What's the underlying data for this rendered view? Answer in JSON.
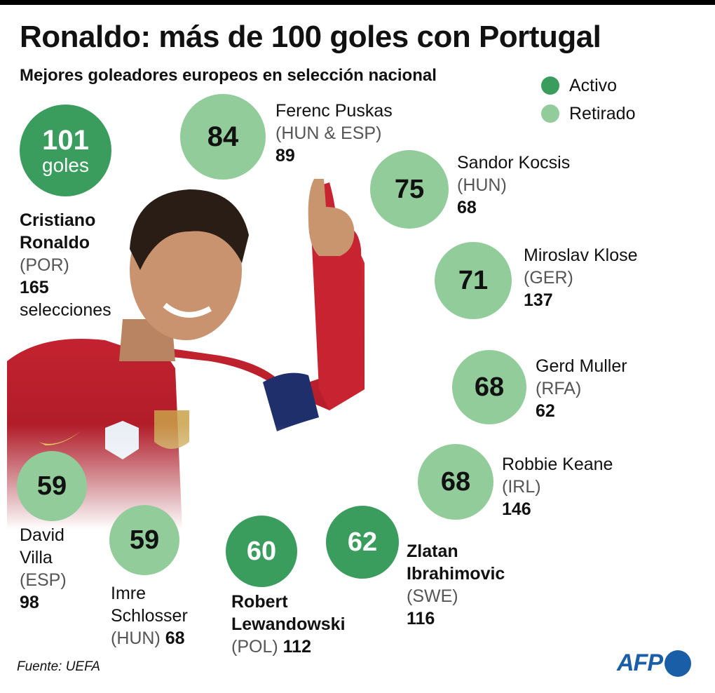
{
  "header": {
    "title": "Ronaldo: más de 100 goles con Portugal",
    "subtitle": "Mejores goleadores europeos en selección nacional"
  },
  "legend": {
    "active_label": "Activo",
    "retired_label": "Retirado"
  },
  "colors": {
    "active": "#3a9d5d",
    "retired": "#92cc9a"
  },
  "hero": {
    "goals": "101",
    "goals_unit": "goles",
    "name_line1": "Cristiano",
    "name_line2": "Ronaldo",
    "country": "(POR)",
    "caps": "165",
    "caps_label": "selecciones"
  },
  "chart_data": {
    "type": "bubble",
    "title": "Ronaldo: más de 100 goles con Portugal",
    "subtitle": "Mejores goleadores europeos en selección nacional",
    "legend": [
      "Activo",
      "Retirado"
    ],
    "players": [
      {
        "name": "Cristiano Ronaldo",
        "country": "(POR)",
        "goals": 101,
        "caps": 165,
        "status": "Activo"
      },
      {
        "name": "Ferenc Puskas",
        "country": "(HUN & ESP)",
        "goals": 84,
        "caps": 89,
        "status": "Retirado"
      },
      {
        "name": "Sandor Kocsis",
        "country": "(HUN)",
        "goals": 75,
        "caps": 68,
        "status": "Retirado"
      },
      {
        "name": "Miroslav Klose",
        "country": "(GER)",
        "goals": 71,
        "caps": 137,
        "status": "Retirado"
      },
      {
        "name": "Gerd Muller",
        "country": "(RFA)",
        "goals": 68,
        "caps": 62,
        "status": "Retirado"
      },
      {
        "name": "Robbie Keane",
        "country": "(IRL)",
        "goals": 68,
        "caps": 146,
        "status": "Retirado"
      },
      {
        "name": "Zlatan Ibrahimovic",
        "country": "(SWE)",
        "goals": 62,
        "caps": 116,
        "status": "Activo"
      },
      {
        "name": "Robert Lewandowski",
        "country": "(POL)",
        "goals": 60,
        "caps": 112,
        "status": "Activo"
      },
      {
        "name": "Imre Schlosser",
        "country": "(HUN)",
        "goals": 59,
        "caps": 68,
        "status": "Retirado"
      },
      {
        "name": "David Villa",
        "country": "(ESP)",
        "goals": 59,
        "caps": 98,
        "status": "Retirado"
      }
    ]
  },
  "labels": {
    "puskas": {
      "name": "Ferenc Puskas",
      "country": "(HUN & ESP)",
      "caps": "89",
      "goals": "84"
    },
    "kocsis": {
      "name": "Sandor Kocsis",
      "country": "(HUN)",
      "caps": "68",
      "goals": "75"
    },
    "klose": {
      "name": "Miroslav Klose",
      "country": "(GER)",
      "caps": "137",
      "goals": "71"
    },
    "muller": {
      "name": "Gerd Muller",
      "country": "(RFA)",
      "caps": "62",
      "goals": "68"
    },
    "keane": {
      "name": "Robbie Keane",
      "country": "(IRL)",
      "caps": "146",
      "goals": "68"
    },
    "ibrahimovic": {
      "name1": "Zlatan",
      "name2": "Ibrahimovic",
      "country": "(SWE)",
      "caps": "116",
      "goals": "62"
    },
    "lewandowski": {
      "name1": "Robert",
      "name2": "Lewandowski",
      "country": "(POL)",
      "caps": "112",
      "goals": "60"
    },
    "schlosser": {
      "name1": "Imre",
      "name2": "Schlosser",
      "country": "(HUN)",
      "caps": "68",
      "goals": "59"
    },
    "villa": {
      "name1": "David",
      "name2": "Villa",
      "country": "(ESP)",
      "caps": "98",
      "goals": "59"
    }
  },
  "footer": {
    "source": "Fuente: UEFA",
    "logo_text": "AFP"
  }
}
